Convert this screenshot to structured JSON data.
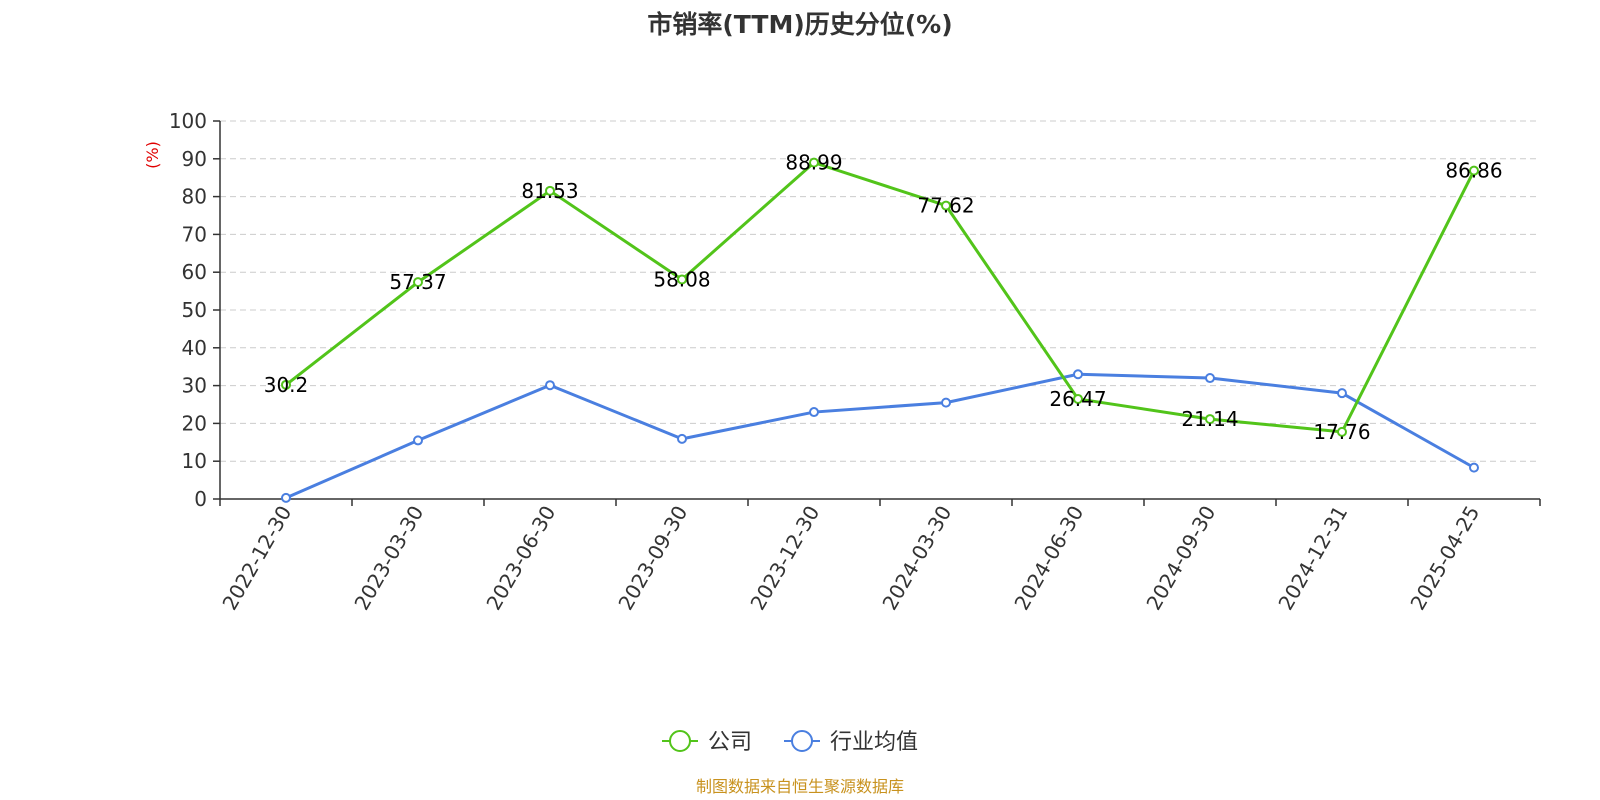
{
  "colors": {
    "company": "#52c41a",
    "industry": "#4a7fe0",
    "unit": "#e00000",
    "source": "#c8921e",
    "grid": "#cccccc",
    "axis": "#333333"
  },
  "chart_data": {
    "type": "line",
    "title": "市销率(TTM)历史分位(%)",
    "ylabel": "(%)",
    "ylim": [
      0,
      100
    ],
    "yticks": [
      0,
      10,
      20,
      30,
      40,
      50,
      60,
      70,
      80,
      90,
      100
    ],
    "grid": true,
    "legend_position": "bottom",
    "categories": [
      "2022-12-30",
      "2023-03-30",
      "2023-06-30",
      "2023-09-30",
      "2023-12-30",
      "2024-03-30",
      "2024-06-30",
      "2024-09-30",
      "2024-12-31",
      "2025-04-25"
    ],
    "series": [
      {
        "name": "公司",
        "color": "#52c41a",
        "show_labels": true,
        "values": [
          30.2,
          57.37,
          81.53,
          58.08,
          88.99,
          77.62,
          26.47,
          21.14,
          17.76,
          86.86
        ]
      },
      {
        "name": "行业均值",
        "color": "#4a7fe0",
        "show_labels": false,
        "values": [
          0.3,
          15.5,
          30.1,
          15.9,
          23.0,
          25.5,
          33.0,
          32.0,
          28.0,
          8.3
        ]
      }
    ],
    "source": "制图数据来自恒生聚源数据库"
  }
}
